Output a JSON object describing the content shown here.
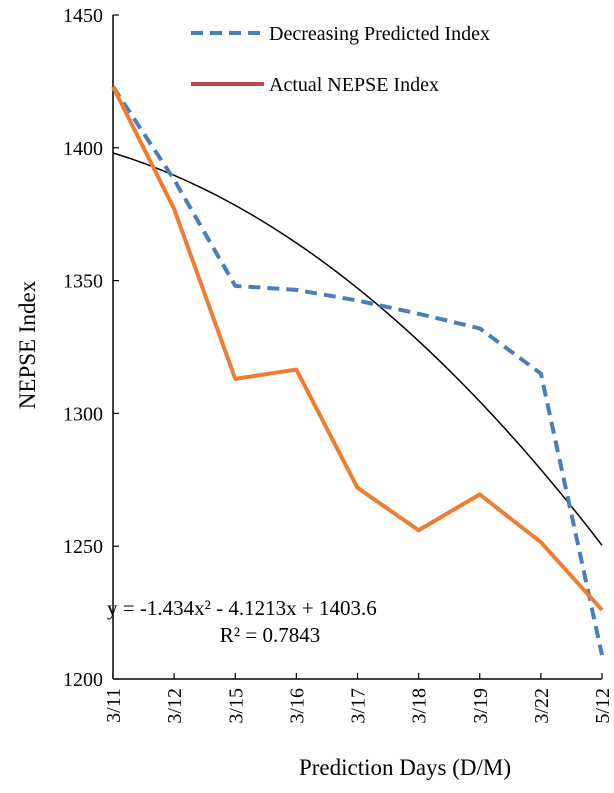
{
  "chart_data": {
    "type": "line",
    "title": "",
    "xlabel": "Prediction Days (D/M)",
    "ylabel": "NEPSE Index",
    "categories": [
      "3/11",
      "3/12",
      "3/15",
      "3/16",
      "3/17",
      "3/18",
      "3/19",
      "3/22",
      "5/12"
    ],
    "ylim": [
      1200,
      1450
    ],
    "yticks": [
      1200,
      1250,
      1300,
      1350,
      1400,
      1450
    ],
    "grid": false,
    "legend_position": "top-right",
    "series": [
      {
        "name": "Decreasing Predicted Index",
        "style": "dashed",
        "color": "#4a7ebb",
        "values": [
          1423,
          1388,
          1348,
          1346.5,
          1342.5,
          1337.5,
          1332,
          1315,
          1209
        ]
      },
      {
        "name": "Actual NEPSE Index",
        "style": "solid",
        "color": "#ed7d31",
        "legend_color": "#be4b48",
        "values": [
          1423,
          1377,
          1313,
          1316.5,
          1272,
          1256,
          1269.5,
          1251.5,
          1226
        ]
      }
    ],
    "trendline": {
      "type": "polynomial",
      "order": 2,
      "color": "#000000",
      "coefficients": {
        "a": -1.434,
        "b": -4.1213,
        "c": 1403.6
      },
      "equation": "y = -1.434x² - 4.1213x + 1403.6",
      "r_squared": "R² = 0.7843"
    }
  }
}
